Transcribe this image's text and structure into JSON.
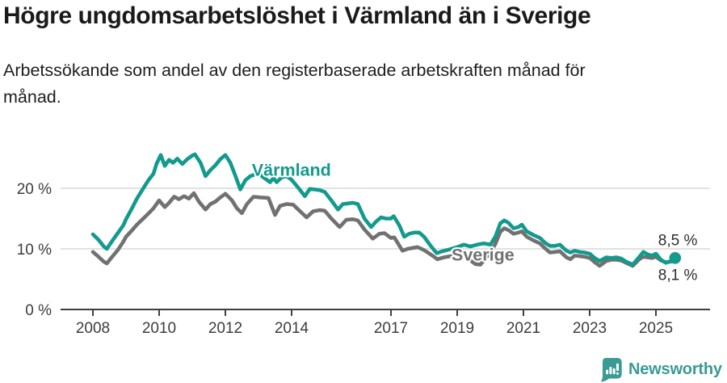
{
  "header": {
    "title": "Högre ungdomsarbetslöshet i Värmland än i Sverige",
    "subtitle_line1": "Arbetssökande som andel av den registerbaserade arbetskraften månad för",
    "subtitle_line2": "månad."
  },
  "colors": {
    "varmland": "#129a8d",
    "sverige": "#717171",
    "brand": "#3a9a94",
    "grid": "#d9d9d9",
    "axis": "#3f3f3f",
    "tick_text": "#3c3c3c",
    "value_text": "#2e2e2e"
  },
  "chart_data": {
    "type": "line",
    "title": "Högre ungdomsarbetslöshet i Värmland än i Sverige",
    "xlabel": "",
    "ylabel": "Arbetssökande som andel av den registerbaserade arbetskraften",
    "unit": "%",
    "ylim": [
      0,
      27
    ],
    "grid": "horizontal",
    "gridlines": [
      10,
      20
    ],
    "y_ticks": [
      {
        "value": 0,
        "label": "0 %"
      },
      {
        "value": 10,
        "label": "10 %"
      },
      {
        "value": 20,
        "label": "20 %"
      }
    ],
    "x_ticks": [
      {
        "year": 2008,
        "label": "2008"
      },
      {
        "year": 2010,
        "label": "2010"
      },
      {
        "year": 2012,
        "label": "2012"
      },
      {
        "year": 2014,
        "label": "2014"
      },
      {
        "year": 2017,
        "label": "2017"
      },
      {
        "year": 2019,
        "label": "2019"
      },
      {
        "year": 2021,
        "label": "2021"
      },
      {
        "year": 2023,
        "label": "2023"
      },
      {
        "year": 2025,
        "label": "2025"
      }
    ],
    "legend_position": "inline-labels",
    "series": [
      {
        "name": "Sverige",
        "color_key": "sverige",
        "end_label": "8,1 %",
        "end_dot": false,
        "label_anchor": {
          "t": 2018.83,
          "v": 8.1
        },
        "points": [
          [
            2008.0,
            9.5
          ],
          [
            2008.17,
            8.7
          ],
          [
            2008.33,
            7.9
          ],
          [
            2008.42,
            7.6
          ],
          [
            2008.58,
            8.7
          ],
          [
            2008.75,
            9.8
          ],
          [
            2008.92,
            11.2
          ],
          [
            2009.0,
            12.0
          ],
          [
            2009.17,
            13.0
          ],
          [
            2009.33,
            14.0
          ],
          [
            2009.5,
            14.9
          ],
          [
            2009.67,
            15.8
          ],
          [
            2009.83,
            16.7
          ],
          [
            2010.0,
            18.0
          ],
          [
            2010.17,
            16.9
          ],
          [
            2010.3,
            17.6
          ],
          [
            2010.45,
            18.6
          ],
          [
            2010.6,
            18.2
          ],
          [
            2010.75,
            18.7
          ],
          [
            2010.9,
            18.3
          ],
          [
            2011.05,
            19.2
          ],
          [
            2011.2,
            17.8
          ],
          [
            2011.4,
            16.5
          ],
          [
            2011.55,
            17.4
          ],
          [
            2011.7,
            17.8
          ],
          [
            2011.85,
            18.5
          ],
          [
            2012.0,
            19.1
          ],
          [
            2012.2,
            18.0
          ],
          [
            2012.35,
            16.7
          ],
          [
            2012.5,
            15.9
          ],
          [
            2012.65,
            17.4
          ],
          [
            2012.85,
            18.6
          ],
          [
            2013.05,
            18.5
          ],
          [
            2013.3,
            18.4
          ],
          [
            2013.5,
            15.6
          ],
          [
            2013.65,
            17.1
          ],
          [
            2013.85,
            17.4
          ],
          [
            2014.05,
            17.3
          ],
          [
            2014.2,
            16.5
          ],
          [
            2014.45,
            15.2
          ],
          [
            2014.65,
            16.2
          ],
          [
            2014.85,
            16.4
          ],
          [
            2015.0,
            16.3
          ],
          [
            2015.2,
            15.0
          ],
          [
            2015.45,
            13.6
          ],
          [
            2015.65,
            14.8
          ],
          [
            2015.85,
            14.9
          ],
          [
            2016.0,
            14.7
          ],
          [
            2016.2,
            13.2
          ],
          [
            2016.45,
            11.7
          ],
          [
            2016.65,
            12.5
          ],
          [
            2016.8,
            12.6
          ],
          [
            2017.0,
            11.8
          ],
          [
            2017.1,
            11.9
          ],
          [
            2017.35,
            9.7
          ],
          [
            2017.5,
            10.0
          ],
          [
            2017.8,
            10.3
          ],
          [
            2018.0,
            9.8
          ],
          [
            2018.25,
            8.9
          ],
          [
            2018.4,
            8.3
          ],
          [
            2018.6,
            8.6
          ],
          [
            2018.8,
            8.8
          ],
          [
            2019.0,
            8.9
          ],
          [
            2019.15,
            9.1
          ],
          [
            2019.35,
            8.3
          ],
          [
            2019.55,
            7.5
          ],
          [
            2019.7,
            7.4
          ],
          [
            2019.85,
            8.4
          ],
          [
            2020.0,
            9.4
          ],
          [
            2020.15,
            10.8
          ],
          [
            2020.3,
            12.8
          ],
          [
            2020.42,
            13.4
          ],
          [
            2020.55,
            13.1
          ],
          [
            2020.7,
            12.5
          ],
          [
            2020.85,
            12.7
          ],
          [
            2020.95,
            12.9
          ],
          [
            2021.1,
            12.0
          ],
          [
            2021.3,
            11.4
          ],
          [
            2021.5,
            10.9
          ],
          [
            2021.65,
            10.1
          ],
          [
            2021.8,
            9.4
          ],
          [
            2021.95,
            9.5
          ],
          [
            2022.1,
            9.6
          ],
          [
            2022.3,
            8.6
          ],
          [
            2022.42,
            8.3
          ],
          [
            2022.55,
            8.9
          ],
          [
            2022.7,
            8.8
          ],
          [
            2022.85,
            8.7
          ],
          [
            2023.0,
            8.5
          ],
          [
            2023.15,
            7.8
          ],
          [
            2023.3,
            7.2
          ],
          [
            2023.5,
            8.0
          ],
          [
            2023.65,
            8.2
          ],
          [
            2023.8,
            8.2
          ],
          [
            2023.95,
            8.1
          ],
          [
            2024.1,
            7.7
          ],
          [
            2024.3,
            7.2
          ],
          [
            2024.5,
            8.3
          ],
          [
            2024.62,
            8.7
          ],
          [
            2024.75,
            8.6
          ],
          [
            2024.88,
            8.5
          ],
          [
            2025.0,
            8.7
          ],
          [
            2025.15,
            8.1
          ],
          [
            2025.3,
            7.8
          ],
          [
            2025.45,
            7.9
          ],
          [
            2025.58,
            8.1
          ]
        ]
      },
      {
        "name": "Värmland",
        "color_key": "varmland",
        "end_label": "8,5 %",
        "end_dot": true,
        "label_anchor": {
          "t": 2012.8,
          "v": 22.05
        },
        "points": [
          [
            2008.0,
            12.4
          ],
          [
            2008.17,
            11.5
          ],
          [
            2008.33,
            10.4
          ],
          [
            2008.42,
            10.0
          ],
          [
            2008.58,
            11.3
          ],
          [
            2008.75,
            12.6
          ],
          [
            2008.92,
            13.9
          ],
          [
            2009.0,
            14.9
          ],
          [
            2009.17,
            16.6
          ],
          [
            2009.33,
            18.3
          ],
          [
            2009.5,
            19.8
          ],
          [
            2009.67,
            21.3
          ],
          [
            2009.83,
            22.4
          ],
          [
            2009.92,
            24.0
          ],
          [
            2010.05,
            25.5
          ],
          [
            2010.17,
            23.7
          ],
          [
            2010.3,
            24.7
          ],
          [
            2010.42,
            24.2
          ],
          [
            2010.55,
            24.9
          ],
          [
            2010.7,
            24.0
          ],
          [
            2010.85,
            24.8
          ],
          [
            2011.0,
            25.4
          ],
          [
            2011.08,
            25.6
          ],
          [
            2011.25,
            24.2
          ],
          [
            2011.4,
            22.0
          ],
          [
            2011.55,
            23.0
          ],
          [
            2011.7,
            23.8
          ],
          [
            2011.85,
            24.8
          ],
          [
            2012.0,
            25.5
          ],
          [
            2012.15,
            24.2
          ],
          [
            2012.3,
            22.1
          ],
          [
            2012.45,
            19.8
          ],
          [
            2012.6,
            21.3
          ],
          [
            2012.75,
            22.0
          ],
          [
            2012.9,
            22.3
          ],
          [
            2013.05,
            22.2
          ],
          [
            2013.2,
            21.6
          ],
          [
            2013.35,
            21.0
          ],
          [
            2013.45,
            21.7
          ],
          [
            2013.55,
            21.0
          ],
          [
            2013.7,
            21.8
          ],
          [
            2013.85,
            22.0
          ],
          [
            2014.0,
            21.4
          ],
          [
            2014.2,
            20.1
          ],
          [
            2014.4,
            18.7
          ],
          [
            2014.55,
            19.9
          ],
          [
            2014.7,
            19.8
          ],
          [
            2014.85,
            19.7
          ],
          [
            2015.0,
            19.4
          ],
          [
            2015.2,
            18.0
          ],
          [
            2015.4,
            16.5
          ],
          [
            2015.55,
            17.4
          ],
          [
            2015.7,
            17.5
          ],
          [
            2015.85,
            17.6
          ],
          [
            2016.0,
            17.4
          ],
          [
            2016.2,
            15.0
          ],
          [
            2016.4,
            13.6
          ],
          [
            2016.55,
            14.5
          ],
          [
            2016.7,
            15.2
          ],
          [
            2016.85,
            15.0
          ],
          [
            2017.0,
            15.0
          ],
          [
            2017.08,
            15.4
          ],
          [
            2017.25,
            13.9
          ],
          [
            2017.4,
            12.0
          ],
          [
            2017.55,
            12.5
          ],
          [
            2017.7,
            12.7
          ],
          [
            2017.85,
            12.7
          ],
          [
            2018.0,
            12.0
          ],
          [
            2018.2,
            10.5
          ],
          [
            2018.38,
            9.3
          ],
          [
            2018.55,
            9.6
          ],
          [
            2018.75,
            9.9
          ],
          [
            2019.0,
            10.3
          ],
          [
            2019.2,
            10.7
          ],
          [
            2019.4,
            10.4
          ],
          [
            2019.6,
            10.7
          ],
          [
            2019.8,
            10.9
          ],
          [
            2020.0,
            10.7
          ],
          [
            2020.15,
            12.0
          ],
          [
            2020.3,
            14.2
          ],
          [
            2020.42,
            14.7
          ],
          [
            2020.55,
            14.3
          ],
          [
            2020.7,
            13.4
          ],
          [
            2020.85,
            13.6
          ],
          [
            2020.95,
            14.0
          ],
          [
            2021.1,
            12.9
          ],
          [
            2021.3,
            12.3
          ],
          [
            2021.5,
            11.8
          ],
          [
            2021.65,
            11.0
          ],
          [
            2021.8,
            10.5
          ],
          [
            2021.95,
            10.5
          ],
          [
            2022.1,
            10.7
          ],
          [
            2022.3,
            9.7
          ],
          [
            2022.42,
            9.4
          ],
          [
            2022.55,
            9.7
          ],
          [
            2022.7,
            9.5
          ],
          [
            2022.85,
            9.4
          ],
          [
            2023.0,
            9.2
          ],
          [
            2023.15,
            8.5
          ],
          [
            2023.3,
            8.0
          ],
          [
            2023.5,
            8.6
          ],
          [
            2023.65,
            8.5
          ],
          [
            2023.8,
            8.6
          ],
          [
            2023.95,
            8.4
          ],
          [
            2024.1,
            7.9
          ],
          [
            2024.3,
            7.4
          ],
          [
            2024.5,
            8.7
          ],
          [
            2024.62,
            9.5
          ],
          [
            2024.75,
            9.1
          ],
          [
            2024.88,
            8.9
          ],
          [
            2025.0,
            9.2
          ],
          [
            2025.15,
            8.2
          ],
          [
            2025.3,
            7.7
          ],
          [
            2025.45,
            8.0
          ],
          [
            2025.58,
            8.5
          ]
        ]
      }
    ]
  },
  "footer": {
    "brand": "Newsworthy"
  }
}
